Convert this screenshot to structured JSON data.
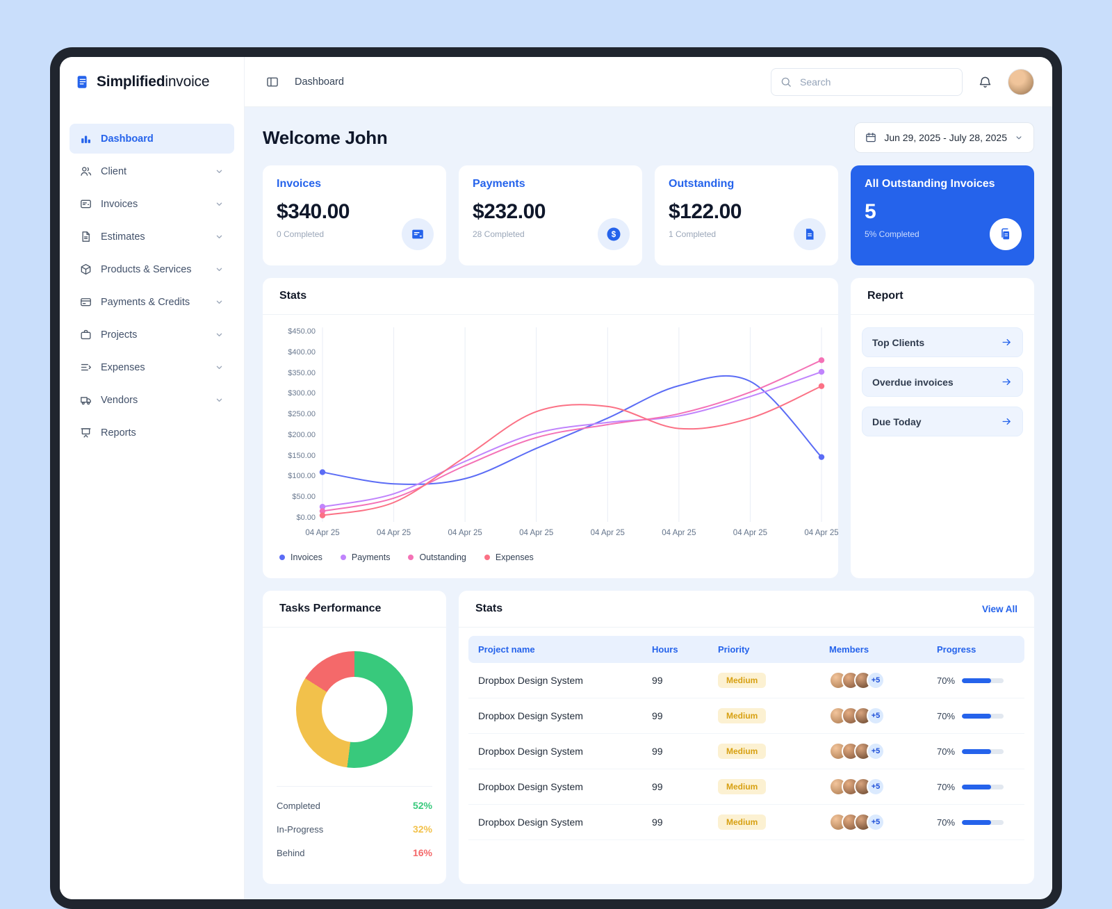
{
  "brand": {
    "bold": "Simplified",
    "light": "invoice"
  },
  "header": {
    "breadcrumb": "Dashboard",
    "search_placeholder": "Search"
  },
  "sidebar": {
    "items": [
      {
        "label": "Dashboard"
      },
      {
        "label": "Client"
      },
      {
        "label": "Invoices"
      },
      {
        "label": "Estimates"
      },
      {
        "label": "Products & Services"
      },
      {
        "label": "Payments & Credits"
      },
      {
        "label": "Projects"
      },
      {
        "label": "Expenses"
      },
      {
        "label": "Vendors"
      },
      {
        "label": "Reports"
      }
    ]
  },
  "main": {
    "welcome": "Welcome John",
    "date_range": "Jun 29, 2025 - July 28, 2025",
    "stat_cards": [
      {
        "title": "Invoices",
        "amount": "$340.00",
        "subtitle": "0 Completed"
      },
      {
        "title": "Payments",
        "amount": "$232.00",
        "subtitle": "28 Completed"
      },
      {
        "title": "Outstanding",
        "amount": "$122.00",
        "subtitle": "1 Completed"
      },
      {
        "title": "All Outstanding Invoices",
        "amount": "5",
        "subtitle": "5% Completed"
      }
    ],
    "report": {
      "title": "Report",
      "links": [
        {
          "label": "Top Clients"
        },
        {
          "label": "Overdue invoices"
        },
        {
          "label": "Due Today"
        }
      ]
    },
    "tasks": {
      "title": "Tasks Performance",
      "legend": [
        {
          "label": "Completed",
          "value": "52%",
          "percent": 52,
          "color": "#38c97c"
        },
        {
          "label": "In-Progress",
          "value": "32%",
          "percent": 32,
          "color": "#f2c14b"
        },
        {
          "label": "Behind",
          "value": "16%",
          "percent": 16,
          "color": "#f4696a"
        }
      ]
    },
    "table": {
      "title": "Stats",
      "view_all": "View All",
      "columns": [
        "Project name",
        "Hours",
        "Priority",
        "Members",
        "Progress"
      ],
      "rows": [
        {
          "project": "Dropbox Design System",
          "hours": "99",
          "priority": "Medium",
          "members_extra": "+5",
          "progress": "70%",
          "progress_value": 70
        },
        {
          "project": "Dropbox Design System",
          "hours": "99",
          "priority": "Medium",
          "members_extra": "+5",
          "progress": "70%",
          "progress_value": 70
        },
        {
          "project": "Dropbox Design System",
          "hours": "99",
          "priority": "Medium",
          "members_extra": "+5",
          "progress": "70%",
          "progress_value": 70
        },
        {
          "project": "Dropbox Design System",
          "hours": "99",
          "priority": "Medium",
          "members_extra": "+5",
          "progress": "70%",
          "progress_value": 70
        },
        {
          "project": "Dropbox Design System",
          "hours": "99",
          "priority": "Medium",
          "members_extra": "+5",
          "progress": "70%",
          "progress_value": 70
        }
      ]
    }
  },
  "chart_data": {
    "type": "line",
    "title": "Stats",
    "x": [
      "04 Apr 25",
      "04 Apr 25",
      "04 Apr 25",
      "04 Apr 25",
      "04 Apr 25",
      "04 Apr 25",
      "04 Apr 25",
      "04 Apr 25"
    ],
    "y_ticks": [
      "$450.00",
      "$400.00",
      "$350.00",
      "$300.00",
      "$250.00",
      "$200.00",
      "$150.00",
      "$100.00",
      "$50.00",
      "$0.00"
    ],
    "ylim": [
      0,
      450
    ],
    "grid": "vertical",
    "legend_position": "bottom",
    "series": [
      {
        "name": "Invoices",
        "color": "#5b6cf5",
        "values": [
          115,
          88,
          100,
          170,
          240,
          315,
          325,
          150
        ]
      },
      {
        "name": "Payments",
        "color": "#c084fc",
        "values": [
          35,
          65,
          140,
          205,
          230,
          245,
          290,
          347
        ]
      },
      {
        "name": "Outstanding",
        "color": "#f472b6",
        "values": [
          25,
          55,
          130,
          195,
          225,
          250,
          300,
          374
        ]
      },
      {
        "name": "Expenses",
        "color": "#fb7185",
        "values": [
          15,
          45,
          150,
          255,
          267,
          216,
          240,
          314
        ]
      }
    ]
  }
}
